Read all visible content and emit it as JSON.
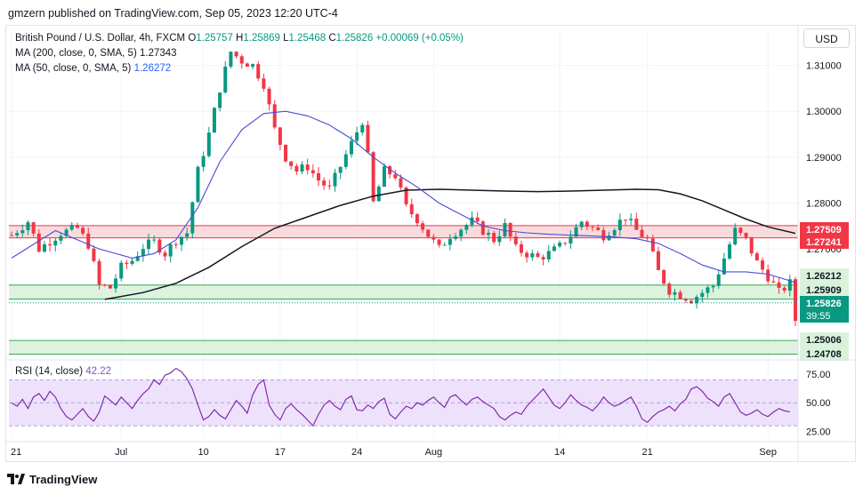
{
  "header": {
    "publisher": "gmzern published on TradingView.com, Sep 05, 2023 12:20 UTC-4"
  },
  "legend": {
    "symbol": "British Pound / U.S. Dollar, 4h, FXCM",
    "o_label": "O",
    "o_value": "1.25757",
    "h_label": "H",
    "h_value": "1.25869",
    "l_label": "L",
    "l_value": "1.25468",
    "c_label": "C",
    "c_value": "1.25826",
    "change": "+0.00069 (+0.05%)",
    "ma200_label": "MA (200, close, 0, SMA, 5)",
    "ma200_value": "1.27343",
    "ma50_label": "MA (50, close, 0, SMA, 5)",
    "ma50_value": "1.26272"
  },
  "currency_button": "USD",
  "rsi_label": {
    "name": "RSI (14, close)",
    "value": "42.22"
  },
  "footer": {
    "brand": "TradingView"
  },
  "colors": {
    "up": "#089981",
    "down": "#f23645",
    "ma200": "#131722",
    "ma50": "#4a4ad6",
    "resistance_zone": "#f8d7da",
    "support_zone": "#d9f2dc",
    "rsi_line": "#7b1fa2",
    "rsi_band": "#ede1fb"
  },
  "chart_data": [
    {
      "type": "candlestick",
      "symbol": "GBPUSD",
      "timeframe": "4h",
      "ylim": [
        1.2462,
        1.3165
      ],
      "y_ticks": [
        "1.31000",
        "1.30000",
        "1.29000",
        "1.28000",
        "1.27000"
      ],
      "x_ticks": [
        "21",
        "Jul",
        "10",
        "17",
        "24",
        "Aug",
        "14",
        "21",
        "Sep"
      ],
      "grid": true,
      "path": [
        [
          0,
          1.273
        ],
        [
          3,
          1.276
        ],
        [
          5,
          1.27
        ],
        [
          9,
          1.2735
        ],
        [
          12,
          1.2745
        ],
        [
          14,
          1.271
        ],
        [
          16,
          1.262
        ],
        [
          18,
          1.2615
        ],
        [
          20,
          1.266
        ],
        [
          22,
          1.2675
        ],
        [
          24,
          1.2705
        ],
        [
          26,
          1.2715
        ],
        [
          28,
          1.269
        ],
        [
          30,
          1.272
        ],
        [
          32,
          1.2735
        ],
        [
          34,
          1.287
        ],
        [
          36,
          1.295
        ],
        [
          38,
          1.305
        ],
        [
          40,
          1.313
        ],
        [
          42,
          1.311
        ],
        [
          44,
          1.31
        ],
        [
          46,
          1.306
        ],
        [
          48,
          1.296
        ],
        [
          50,
          1.29
        ],
        [
          52,
          1.287
        ],
        [
          54,
          1.288
        ],
        [
          56,
          1.285
        ],
        [
          58,
          1.283
        ],
        [
          60,
          1.288
        ],
        [
          62,
          1.293
        ],
        [
          64,
          1.298
        ],
        [
          65,
          1.29
        ],
        [
          66,
          1.28
        ],
        [
          68,
          1.287
        ],
        [
          70,
          1.286
        ],
        [
          72,
          1.279
        ],
        [
          74,
          1.2765
        ],
        [
          76,
          1.273
        ],
        [
          78,
          1.27
        ],
        [
          80,
          1.273
        ],
        [
          82,
          1.2745
        ],
        [
          84,
          1.276
        ],
        [
          86,
          1.274
        ],
        [
          88,
          1.272
        ],
        [
          90,
          1.275
        ],
        [
          92,
          1.27
        ],
        [
          94,
          1.269
        ],
        [
          96,
          1.268
        ],
        [
          98,
          1.269
        ],
        [
          100,
          1.2705
        ],
        [
          102,
          1.273
        ],
        [
          104,
          1.276
        ],
        [
          106,
          1.2745
        ],
        [
          108,
          1.273
        ],
        [
          110,
          1.275
        ],
        [
          112,
          1.277
        ],
        [
          114,
          1.274
        ],
        [
          116,
          1.272
        ],
        [
          118,
          1.265
        ],
        [
          120,
          1.261
        ],
        [
          122,
          1.26
        ],
        [
          124,
          1.259
        ],
        [
          126,
          1.2605
        ],
        [
          128,
          1.262
        ],
        [
          130,
          1.268
        ],
        [
          132,
          1.274
        ],
        [
          134,
          1.272
        ],
        [
          136,
          1.267
        ],
        [
          138,
          1.264
        ],
        [
          140,
          1.2605
        ],
        [
          142,
          1.2625
        ],
        [
          143,
          1.2545
        ]
      ],
      "ma50_path": [
        [
          0,
          1.268
        ],
        [
          8,
          1.274
        ],
        [
          16,
          1.27
        ],
        [
          22,
          1.268
        ],
        [
          26,
          1.269
        ],
        [
          30,
          1.272
        ],
        [
          34,
          1.279
        ],
        [
          38,
          1.289
        ],
        [
          42,
          1.296
        ],
        [
          46,
          1.2995
        ],
        [
          50,
          1.3
        ],
        [
          54,
          1.299
        ],
        [
          58,
          1.297
        ],
        [
          62,
          1.294
        ],
        [
          66,
          1.29
        ],
        [
          70,
          1.2865
        ],
        [
          74,
          1.2835
        ],
        [
          78,
          1.28
        ],
        [
          82,
          1.2775
        ],
        [
          86,
          1.275
        ],
        [
          90,
          1.274
        ],
        [
          94,
          1.2735
        ],
        [
          98,
          1.2732
        ],
        [
          102,
          1.273
        ],
        [
          106,
          1.2728
        ],
        [
          110,
          1.2726
        ],
        [
          114,
          1.2722
        ],
        [
          118,
          1.2712
        ],
        [
          122,
          1.269
        ],
        [
          126,
          1.2665
        ],
        [
          130,
          1.265
        ],
        [
          134,
          1.265
        ],
        [
          138,
          1.2645
        ],
        [
          143,
          1.2627
        ]
      ],
      "ma200_path": [
        [
          17,
          1.259
        ],
        [
          24,
          1.2605
        ],
        [
          30,
          1.2625
        ],
        [
          36,
          1.266
        ],
        [
          42,
          1.2705
        ],
        [
          48,
          1.2745
        ],
        [
          54,
          1.277
        ],
        [
          60,
          1.2795
        ],
        [
          66,
          1.2815
        ],
        [
          72,
          1.2828
        ],
        [
          78,
          1.283
        ],
        [
          84,
          1.2828
        ],
        [
          90,
          1.2826
        ],
        [
          96,
          1.2825
        ],
        [
          102,
          1.2826
        ],
        [
          108,
          1.2828
        ],
        [
          114,
          1.283
        ],
        [
          118,
          1.2829
        ],
        [
          122,
          1.282
        ],
        [
          126,
          1.2805
        ],
        [
          130,
          1.2785
        ],
        [
          134,
          1.2765
        ],
        [
          138,
          1.2748
        ],
        [
          143,
          1.2734
        ]
      ],
      "zones": [
        {
          "name": "resistance",
          "top": 1.27509,
          "bottom": 1.27241,
          "top_label": "1.27509",
          "bottom_label": "1.27241"
        },
        {
          "name": "support-upper",
          "top": 1.26212,
          "bottom": 1.25909,
          "top_label": "1.26212",
          "bottom_label": "1.25909"
        },
        {
          "name": "support-lower",
          "top": 1.25006,
          "bottom": 1.24708,
          "top_label": "1.25006",
          "bottom_label": "1.24708"
        }
      ],
      "last_price": {
        "value": "1.25826",
        "countdown": "39:55"
      }
    },
    {
      "type": "line",
      "name": "RSI (14, close)",
      "ylim": [
        20,
        85
      ],
      "y_ticks": [
        "75.00",
        "50.00",
        "25.00"
      ],
      "band": [
        30,
        70
      ],
      "values": [
        50,
        47,
        53,
        45,
        55,
        58,
        52,
        60,
        55,
        45,
        38,
        35,
        40,
        45,
        38,
        34,
        42,
        56,
        52,
        48,
        55,
        50,
        45,
        52,
        58,
        62,
        70,
        66,
        74,
        76,
        80,
        77,
        71,
        62,
        48,
        35,
        38,
        44,
        39,
        36,
        44,
        52,
        47,
        41,
        57,
        66,
        70,
        48,
        40,
        35,
        45,
        49,
        44,
        40,
        35,
        30,
        40,
        48,
        52,
        47,
        44,
        53,
        56,
        44,
        43,
        48,
        45,
        51,
        54,
        40,
        36,
        42,
        47,
        45,
        50,
        48,
        52,
        55,
        50,
        46,
        55,
        57,
        52,
        48,
        53,
        55,
        51,
        48,
        45,
        38,
        35,
        39,
        42,
        40,
        47,
        52,
        57,
        62,
        55,
        48,
        45,
        50,
        57,
        52,
        48,
        46,
        43,
        48,
        55,
        50,
        47,
        49,
        52,
        55,
        47,
        36,
        33,
        38,
        42,
        44,
        47,
        43,
        49,
        53,
        62,
        64,
        60,
        54,
        51,
        47,
        55,
        58,
        50,
        42,
        39,
        41,
        44,
        40,
        38,
        42,
        45,
        43,
        42.22
      ],
      "last_value": "42.22"
    }
  ]
}
